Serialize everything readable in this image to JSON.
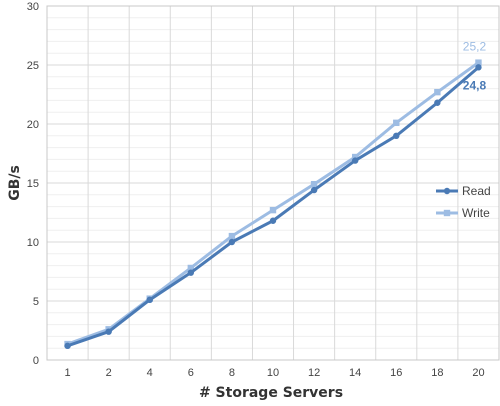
{
  "chart_data": {
    "type": "line",
    "title": "",
    "xlabel": "# Storage Servers",
    "ylabel": "GB/s",
    "categories": [
      "1",
      "2",
      "4",
      "6",
      "8",
      "10",
      "12",
      "14",
      "16",
      "18",
      "20"
    ],
    "ylim": [
      0,
      30
    ],
    "yticks": [
      "0",
      "5",
      "10",
      "15",
      "20",
      "25",
      "30"
    ],
    "grid": true,
    "legend_position": "right",
    "series": [
      {
        "name": "Read",
        "color": "#4a7ab5",
        "marker": "circle",
        "values": [
          1.2,
          2.4,
          5.1,
          7.4,
          10.0,
          11.8,
          14.4,
          16.9,
          19.0,
          21.8,
          24.8
        ],
        "end_label": "24,8"
      },
      {
        "name": "Write",
        "color": "#9dbce3",
        "marker": "square",
        "values": [
          1.35,
          2.6,
          5.2,
          7.8,
          10.5,
          12.7,
          14.9,
          17.2,
          20.1,
          22.7,
          25.2
        ],
        "end_label": "25,2"
      }
    ]
  }
}
